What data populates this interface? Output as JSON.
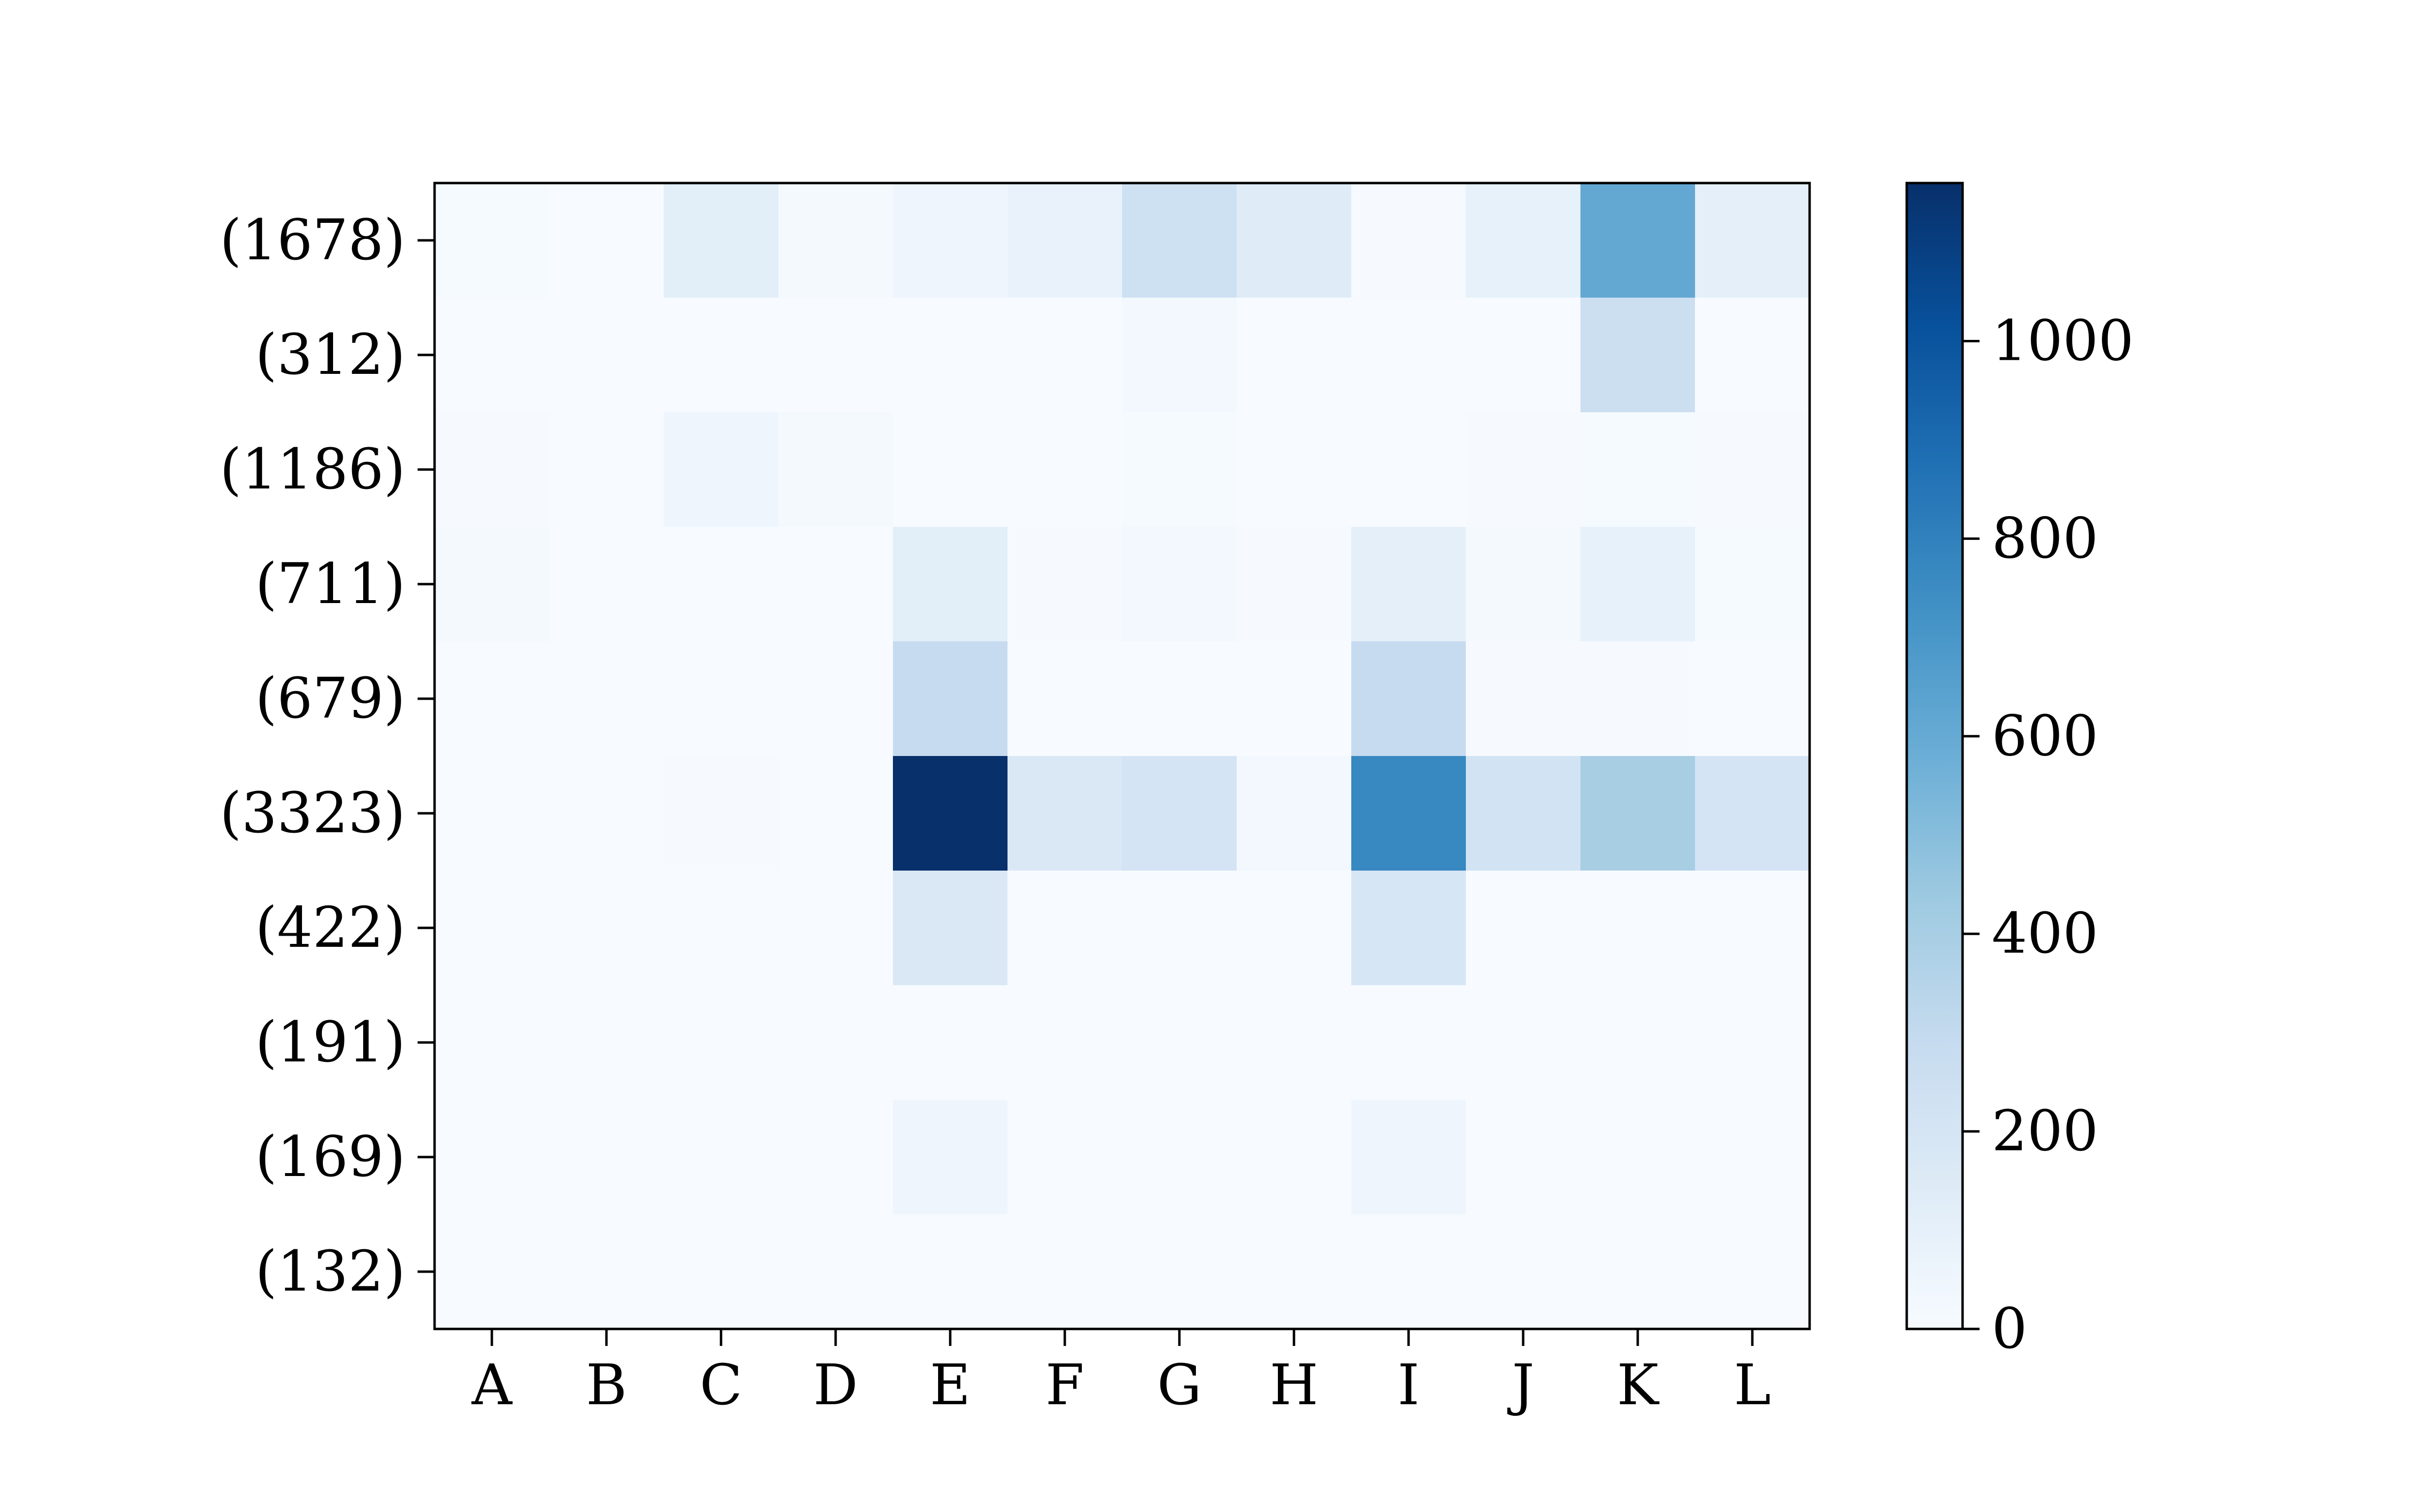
{
  "chart_data": {
    "type": "heatmap",
    "title": "",
    "xlabel": "",
    "ylabel": "",
    "x_categories": [
      "A",
      "B",
      "C",
      "D",
      "E",
      "F",
      "G",
      "H",
      "I",
      "J",
      "K",
      "L"
    ],
    "y_categories": [
      "(1678)",
      "(312)",
      "(1186)",
      "(711)",
      "(679)",
      "(3323)",
      "(422)",
      "(191)",
      "(169)",
      "(132)"
    ],
    "values": [
      [
        12,
        2,
        120,
        20,
        55,
        80,
        240,
        140,
        8,
        95,
        610,
        110
      ],
      [
        2,
        0,
        2,
        2,
        2,
        2,
        30,
        2,
        2,
        2,
        255,
        2
      ],
      [
        8,
        2,
        55,
        15,
        2,
        2,
        10,
        2,
        2,
        5,
        10,
        5
      ],
      [
        15,
        0,
        0,
        0,
        120,
        8,
        25,
        5,
        110,
        15,
        95,
        10
      ],
      [
        0,
        0,
        0,
        0,
        290,
        2,
        0,
        0,
        290,
        5,
        5,
        2
      ],
      [
        2,
        0,
        5,
        0,
        1160,
        170,
        205,
        30,
        770,
        220,
        400,
        205
      ],
      [
        0,
        0,
        0,
        0,
        170,
        0,
        0,
        0,
        190,
        0,
        0,
        0
      ],
      [
        0,
        0,
        0,
        0,
        0,
        0,
        0,
        0,
        0,
        0,
        0,
        0
      ],
      [
        0,
        0,
        0,
        0,
        55,
        0,
        0,
        0,
        55,
        0,
        0,
        0
      ],
      [
        0,
        0,
        0,
        0,
        0,
        0,
        0,
        0,
        0,
        0,
        0,
        0
      ]
    ],
    "colorbar": {
      "min": 0,
      "max": 1160,
      "ticks": [
        0,
        200,
        400,
        600,
        800,
        1000
      ],
      "tick_labels": [
        "0",
        "200",
        "400",
        "600",
        "800",
        "1000"
      ]
    },
    "colormap": "Blues",
    "colormap_stops": [
      "#f7fbff",
      "#deebf7",
      "#c6dbef",
      "#9ecae1",
      "#6baed6",
      "#4292c6",
      "#2171b5",
      "#08519c",
      "#08306b"
    ],
    "grid": false
  }
}
